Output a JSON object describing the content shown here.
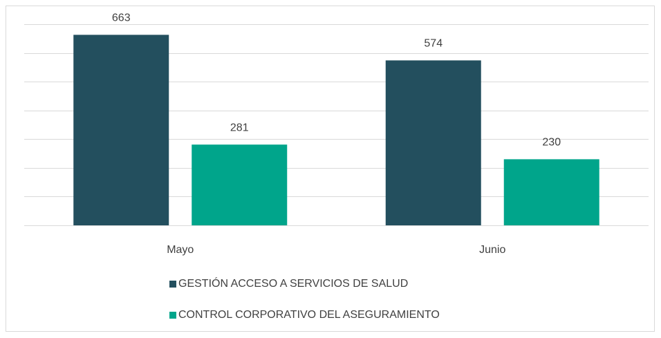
{
  "chart_data": {
    "type": "bar",
    "categories": [
      "Mayo",
      "Junio"
    ],
    "series": [
      {
        "name": "GESTIÓN ACCESO A SERVICIOS DE SALUD",
        "color": "#234f5e",
        "values": [
          663,
          574
        ]
      },
      {
        "name": "CONTROL CORPORATIVO DEL ASEGURAMIENTO",
        "color": "#00a58b",
        "values": [
          281,
          230
        ]
      }
    ],
    "ylim": [
      0,
      700
    ],
    "yticks": [
      0,
      100,
      200,
      300,
      400,
      500,
      600,
      700
    ],
    "grid": true
  }
}
